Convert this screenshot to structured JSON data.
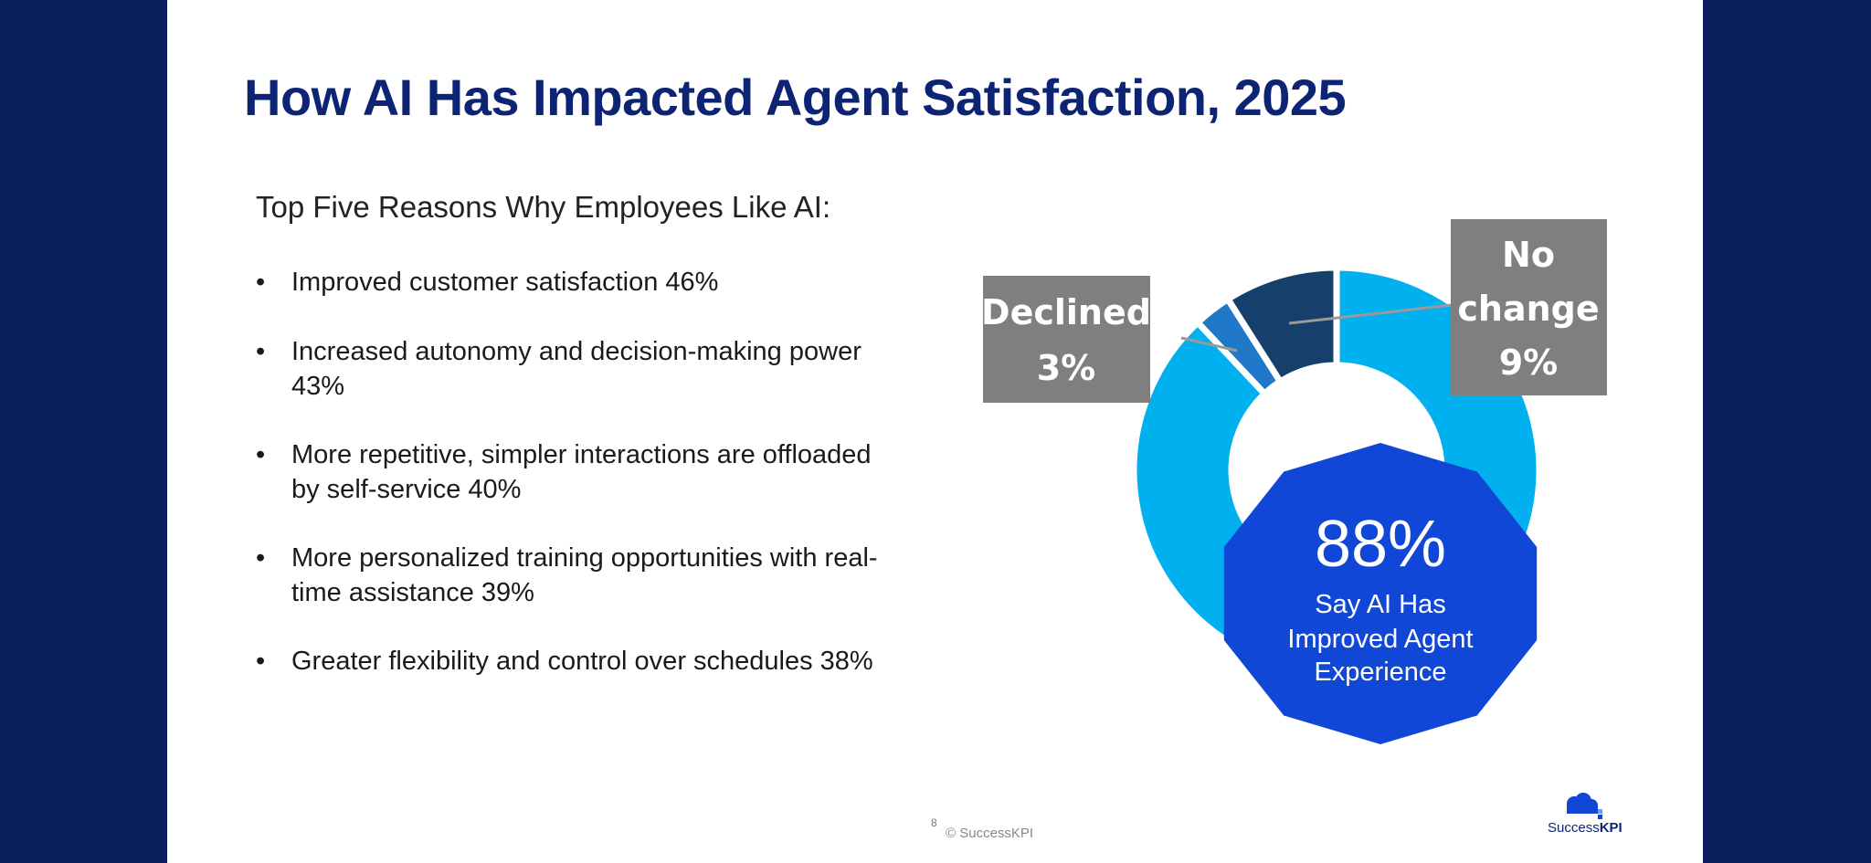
{
  "slide": {
    "title": "How AI Has Impacted Agent Satisfaction, 2025",
    "subhead": "Top Five Reasons Why Employees Like AI:",
    "reasons": [
      "Improved customer satisfaction 46%",
      "Increased autonomy and decision-making power 43%",
      "More repetitive, simpler interactions are offloaded by self-service 40%",
      "More personalized training opportunities with real-time assistance 39%",
      "Greater flexibility and control over schedules 38%"
    ],
    "bullet": "•",
    "page_number": "8",
    "copyright": "© SuccessKPI",
    "logo_text_a": "Success",
    "logo_text_b": "KPI"
  },
  "chart_data": {
    "type": "pie",
    "categories": [
      "Say AI Has Improved Agent Experience",
      "Declined",
      "No change"
    ],
    "values": [
      88,
      3,
      9
    ],
    "labels": {
      "declined": [
        "Declined",
        "3%"
      ],
      "no_change": [
        "No",
        "change",
        "9%"
      ],
      "improved_value": "88%",
      "improved_text": [
        "Say AI Has",
        "Improved Agent",
        "Experience"
      ]
    }
  },
  "colors": {
    "background": "#0b1f5f",
    "title": "#0d2373",
    "improved": "#00b0ef",
    "declined": "#1f78c8",
    "no_change": "#163f6b",
    "callout_gray": "#7f7f7f",
    "highlight": "#1147d6"
  }
}
